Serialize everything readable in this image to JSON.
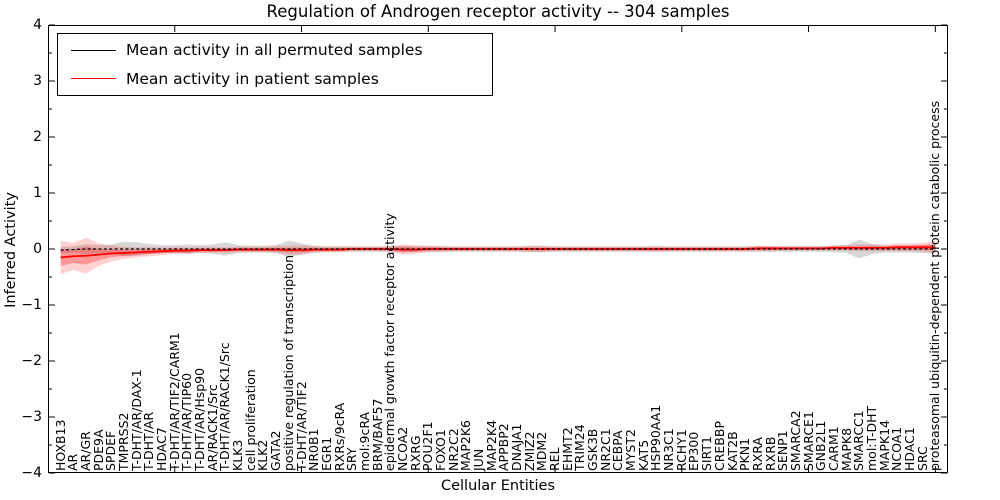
{
  "chart_data": {
    "type": "line",
    "title": "Regulation of Androgen receptor activity -- 304 samples",
    "xlabel": "Cellular Entities",
    "ylabel": "Inferred Activity",
    "ylim": [
      -4,
      4
    ],
    "xlim": [
      0,
      71
    ],
    "yticks": [
      "4",
      "3",
      "2",
      "1",
      "0",
      "−1",
      "−2",
      "−3",
      "−4"
    ],
    "ytick_values": [
      4,
      3,
      2,
      1,
      0,
      -1,
      -2,
      -3,
      -4
    ],
    "xticks_major": [
      10,
      20,
      30,
      40,
      50,
      60,
      70
    ],
    "grid": false,
    "legend_position": "upper left",
    "legend": [
      {
        "label": "Mean activity in all permuted samples",
        "color": "#000000"
      },
      {
        "label": "Mean activity in patient samples",
        "color": "#ff0000"
      }
    ],
    "colors": {
      "permuted_line": "#000000",
      "patient_line": "#ff0000",
      "permuted_band": "#b0b0b0",
      "patient_band": "#ff0000"
    },
    "entities": [
      "HOXB13",
      "AR",
      "AR/GR",
      "PDE9A",
      "SPDEF",
      "TMPRSS2",
      "T-DHT/AR/DAX-1",
      "T-DHT/AR",
      "HDAC7",
      "T-DHT/AR/TIF2/CARM1",
      "T-DHT/AR/TIP60",
      "T-DHT/AR/Hsp90",
      "AR/RACK1/Src",
      "T-DHT/AR/RACK1/Src",
      "KLK3",
      "cell proliferation",
      "KLK2",
      "GATA2",
      "positive regulation of transcription",
      "T-DHT/AR/TIF2",
      "NR0B1",
      "EGR1",
      "RXRs/9cRA",
      "SRY",
      "mol:9cRA",
      "BRM/BAF57",
      "epidermal growth factor receptor activity",
      "NCOA2",
      "RXRG",
      "POU2F1",
      "FOXO1",
      "NR2C2",
      "MAP2K6",
      "JUN",
      "MAP2K4",
      "APPBP2",
      "DNAJA1",
      "ZMIZ2",
      "MDM2",
      "REL",
      "EHMT2",
      "TRIM24",
      "GSK3B",
      "NR2C1",
      "CEBPA",
      "MYST2",
      "KAT5",
      "HSP90AA1",
      "NR3C1",
      "RCHY1",
      "EP300",
      "SIRT1",
      "CREBBP",
      "KAT2B",
      "PKN1",
      "RXRA",
      "RXRB",
      "SENP1",
      "SMARCA2",
      "SMARCE1",
      "GNB2L1",
      "CARM1",
      "MAPK8",
      "SMARCC1",
      "mol:T-DHT",
      "MAPK14",
      "NCOA1",
      "HDAC1",
      "SRC",
      "proteasomal ubiquitin-dependent protein catabolic process"
    ],
    "series": [
      {
        "name": "Mean activity in all permuted samples",
        "values": [
          -0.02,
          -0.01,
          0,
          0,
          0,
          0,
          0,
          0,
          0,
          0,
          0,
          0,
          0,
          0,
          0,
          0,
          0,
          0,
          0,
          0,
          0,
          0,
          0,
          0,
          0,
          0,
          0,
          0,
          0,
          0,
          0,
          0,
          0,
          0,
          0,
          0,
          0,
          0,
          0,
          0,
          0,
          0,
          0,
          0,
          0,
          0,
          0,
          0,
          0,
          0,
          0,
          0,
          0,
          0,
          0,
          0,
          0,
          0,
          0,
          0,
          0,
          0,
          0,
          0,
          0,
          0,
          0,
          0,
          0,
          0
        ],
        "band_halfwidth": [
          0.06,
          0.06,
          0.09,
          0.07,
          0.08,
          0.13,
          0.12,
          0.09,
          0.07,
          0.07,
          0.08,
          0.07,
          0.08,
          0.12,
          0.07,
          0.06,
          0.06,
          0.07,
          0.15,
          0.1,
          0.06,
          0.05,
          0.05,
          0.05,
          0.05,
          0.05,
          0.05,
          0.06,
          0.05,
          0.05,
          0.05,
          0.05,
          0.05,
          0.05,
          0.05,
          0.05,
          0.05,
          0.06,
          0.06,
          0.05,
          0.05,
          0.05,
          0.05,
          0.05,
          0.05,
          0.05,
          0.05,
          0.05,
          0.05,
          0.05,
          0.05,
          0.05,
          0.05,
          0.05,
          0.05,
          0.05,
          0.05,
          0.05,
          0.05,
          0.05,
          0.05,
          0.06,
          0.07,
          0.17,
          0.09,
          0.06,
          0.06,
          0.06,
          0.07,
          0.08
        ]
      },
      {
        "name": "Mean activity in patient samples",
        "values": [
          -0.15,
          -0.13,
          -0.12,
          -0.1,
          -0.08,
          -0.07,
          -0.06,
          -0.05,
          -0.04,
          -0.03,
          -0.03,
          -0.02,
          -0.02,
          -0.02,
          -0.01,
          -0.01,
          -0.01,
          -0.01,
          -0.02,
          -0.02,
          -0.01,
          -0.01,
          -0.01,
          0,
          0,
          0,
          0,
          -0.01,
          -0.01,
          0,
          0,
          0,
          0,
          0,
          0,
          0,
          0,
          0,
          0,
          0,
          0,
          0,
          0,
          0,
          0,
          0,
          0,
          0,
          0,
          0,
          0,
          0,
          0,
          0,
          0,
          0.01,
          0.01,
          0.01,
          0.01,
          0.01,
          0.01,
          0.02,
          0.02,
          0.02,
          0.02,
          0.02,
          0.03,
          0.03,
          0.03,
          0.03
        ],
        "band_halfwidth": [
          0.3,
          0.24,
          0.32,
          0.2,
          0.14,
          0.11,
          0.09,
          0.08,
          0.07,
          0.06,
          0.06,
          0.05,
          0.05,
          0.05,
          0.05,
          0.05,
          0.05,
          0.06,
          0.08,
          0.08,
          0.06,
          0.05,
          0.05,
          0.04,
          0.04,
          0.04,
          0.05,
          0.09,
          0.08,
          0.06,
          0.05,
          0.04,
          0.04,
          0.04,
          0.04,
          0.04,
          0.04,
          0.05,
          0.05,
          0.04,
          0.04,
          0.04,
          0.04,
          0.04,
          0.04,
          0.04,
          0.04,
          0.05,
          0.04,
          0.04,
          0.04,
          0.04,
          0.04,
          0.04,
          0.04,
          0.05,
          0.05,
          0.04,
          0.04,
          0.04,
          0.04,
          0.05,
          0.05,
          0.06,
          0.06,
          0.06,
          0.07,
          0.07,
          0.08,
          0.11
        ],
        "band_inner_ratio": 0.5
      }
    ]
  }
}
